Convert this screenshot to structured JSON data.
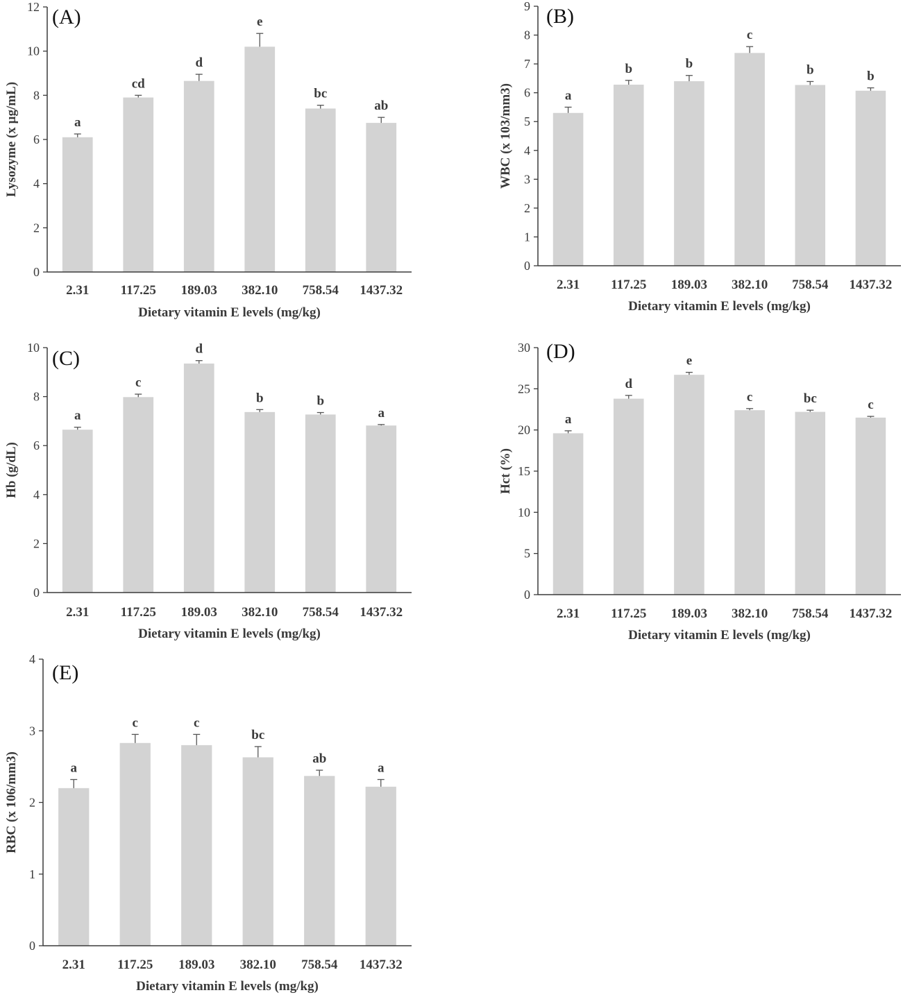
{
  "chart_data": [
    {
      "type": "bar",
      "panel_label": "(A)",
      "xlabel": "Dietary vitamin E levels (mg/kg)",
      "ylabel": "Lysozyme (x µg/mL)",
      "categories": [
        "2.31",
        "117.25",
        "189.03",
        "382.10",
        "758.54",
        "1437.32"
      ],
      "values": [
        6.1,
        7.9,
        8.65,
        10.2,
        7.4,
        6.75
      ],
      "errors": [
        0.15,
        0.1,
        0.3,
        0.6,
        0.15,
        0.25
      ],
      "significance": [
        "a",
        "cd",
        "d",
        "e",
        "bc",
        "ab"
      ],
      "ylim": [
        0,
        12
      ],
      "yticks": [
        0,
        2,
        4,
        6,
        8,
        10,
        12
      ],
      "bar_color": "#d3d3d3"
    },
    {
      "type": "bar",
      "panel_label": "(B)",
      "xlabel": "Dietary vitamin E levels (mg/kg)",
      "ylabel": "WBC (x 103/mm3)",
      "categories": [
        "2.31",
        "117.25",
        "189.03",
        "382.10",
        "758.54",
        "1437.32"
      ],
      "values": [
        5.3,
        6.28,
        6.4,
        7.38,
        6.27,
        6.07
      ],
      "errors": [
        0.2,
        0.15,
        0.2,
        0.22,
        0.12,
        0.1
      ],
      "significance": [
        "a",
        "b",
        "b",
        "c",
        "b",
        "b"
      ],
      "ylim": [
        0,
        9
      ],
      "yticks": [
        0,
        1,
        2,
        3,
        4,
        5,
        6,
        7,
        8,
        9
      ],
      "bar_color": "#d3d3d3"
    },
    {
      "type": "bar",
      "panel_label": "(C)",
      "xlabel": "Dietary vitamin E levels (mg/kg)",
      "ylabel": "Hb (g/dL)",
      "categories": [
        "2.31",
        "117.25",
        "189.03",
        "382.10",
        "758.54",
        "1437.32"
      ],
      "values": [
        6.65,
        7.98,
        9.35,
        7.37,
        7.27,
        6.82
      ],
      "errors": [
        0.1,
        0.12,
        0.12,
        0.1,
        0.08,
        0.04
      ],
      "significance": [
        "a",
        "c",
        "d",
        "b",
        "b",
        "a"
      ],
      "ylim": [
        0,
        10
      ],
      "yticks": [
        0,
        2,
        4,
        6,
        8,
        10
      ],
      "bar_color": "#d3d3d3"
    },
    {
      "type": "bar",
      "panel_label": "(D)",
      "xlabel": "Dietary vitamin E levels (mg/kg)",
      "ylabel": "Hct (%)",
      "categories": [
        "2.31",
        "117.25",
        "189.03",
        "382.10",
        "758.54",
        "1437.32"
      ],
      "values": [
        19.6,
        23.8,
        26.7,
        22.4,
        22.2,
        21.5
      ],
      "errors": [
        0.3,
        0.4,
        0.3,
        0.2,
        0.2,
        0.15
      ],
      "significance": [
        "a",
        "d",
        "e",
        "c",
        "bc",
        "c"
      ],
      "ylim": [
        0,
        30
      ],
      "yticks": [
        0,
        5,
        10,
        15,
        20,
        25,
        30
      ],
      "bar_color": "#d3d3d3"
    },
    {
      "type": "bar",
      "panel_label": "(E)",
      "xlabel": "Dietary vitamin E levels (mg/kg)",
      "ylabel": "RBC (x 106/mm3)",
      "categories": [
        "2.31",
        "117.25",
        "189.03",
        "382.10",
        "758.54",
        "1437.32"
      ],
      "values": [
        2.2,
        2.83,
        2.8,
        2.63,
        2.37,
        2.22
      ],
      "errors": [
        0.12,
        0.12,
        0.15,
        0.15,
        0.08,
        0.1
      ],
      "significance": [
        "a",
        "c",
        "c",
        "bc",
        "ab",
        "a"
      ],
      "ylim": [
        0,
        4
      ],
      "yticks": [
        0,
        1,
        2,
        3,
        4
      ],
      "bar_color": "#d3d3d3"
    }
  ]
}
